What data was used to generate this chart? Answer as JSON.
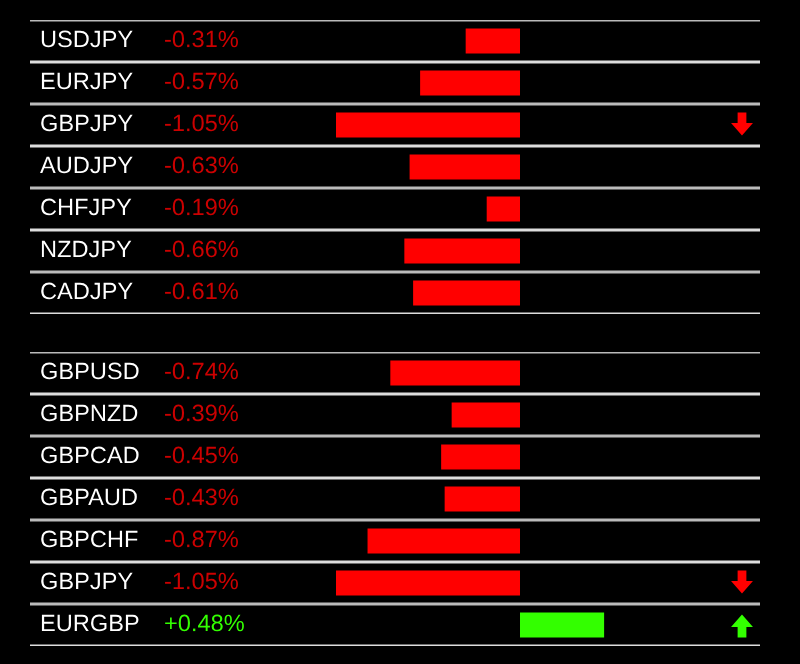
{
  "chart_data": [
    {
      "type": "bar",
      "orientation": "horizontal",
      "categories": [
        "USDJPY",
        "EURJPY",
        "GBPJPY",
        "AUDJPY",
        "CHFJPY",
        "NZDJPY",
        "CADJPY"
      ],
      "values": [
        -0.31,
        -0.57,
        -1.05,
        -0.63,
        -0.19,
        -0.66,
        -0.61
      ],
      "value_labels": [
        "-0.31%",
        "-0.57%",
        "-1.05%",
        "-0.63%",
        "-0.19%",
        "-0.66%",
        "-0.61%"
      ],
      "colors": [
        "#ff0000",
        "#ff0000",
        "#ff0000",
        "#ff0000",
        "#ff0000",
        "#ff0000",
        "#ff0000"
      ]
    },
    {
      "type": "bar",
      "orientation": "horizontal",
      "categories": [
        "GBPUSD",
        "GBPNZD",
        "GBPCAD",
        "GBPAUD",
        "GBPCHF",
        "GBPJPY",
        "EURGBP"
      ],
      "values": [
        -0.74,
        -0.39,
        -0.45,
        -0.43,
        -0.87,
        -1.05,
        0.48
      ],
      "value_labels": [
        "-0.74%",
        "-0.39%",
        "-0.45%",
        "-0.43%",
        "-0.87%",
        "-1.05%",
        "+0.48%"
      ],
      "colors": [
        "#ff0000",
        "#ff0000",
        "#ff0000",
        "#ff0000",
        "#ff0000",
        "#ff0000",
        "#33ff00"
      ]
    }
  ]
}
